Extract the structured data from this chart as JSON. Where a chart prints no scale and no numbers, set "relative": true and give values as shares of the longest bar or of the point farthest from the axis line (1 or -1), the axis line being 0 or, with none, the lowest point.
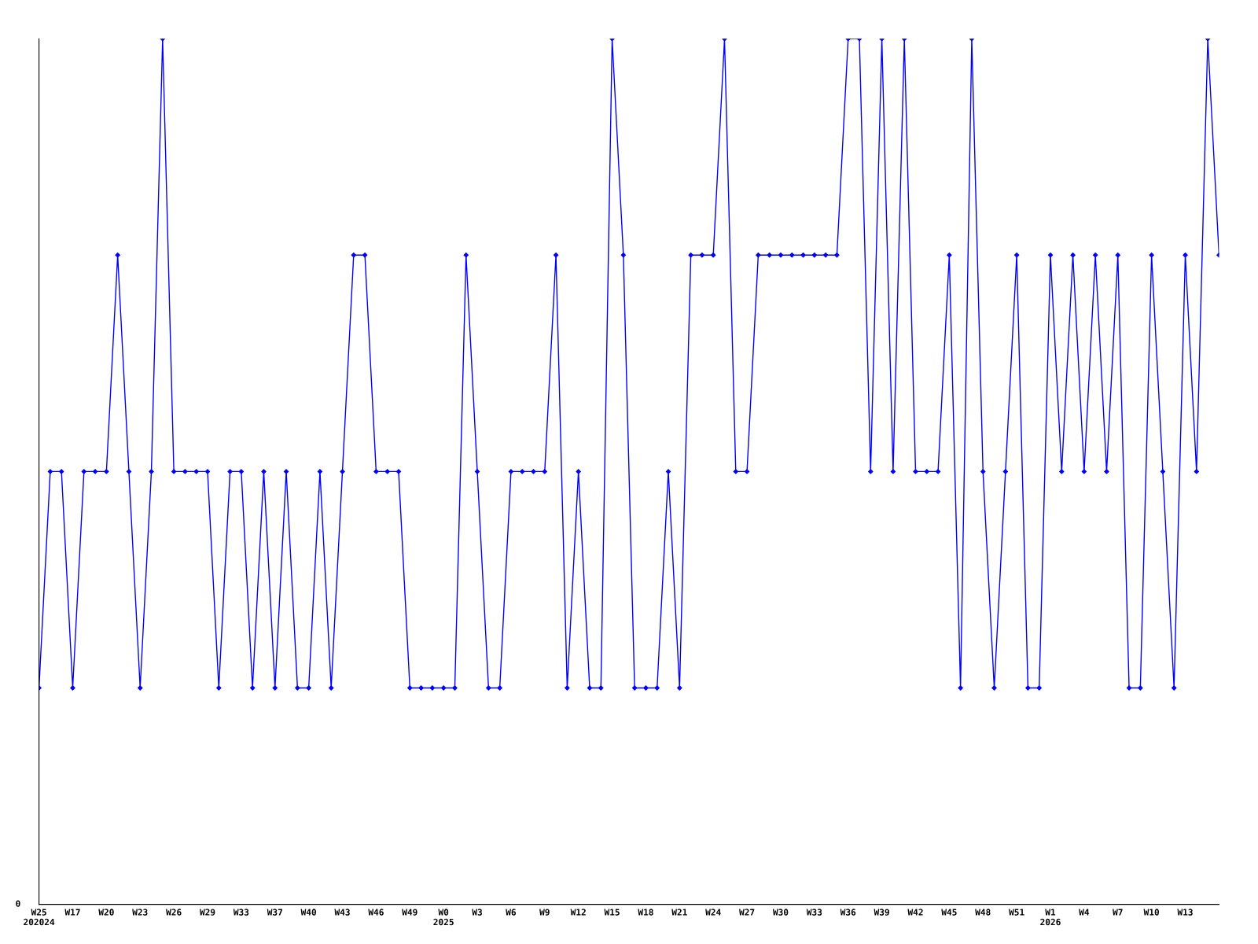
{
  "chart_data": {
    "type": "line",
    "relative": true,
    "marker": "diamond",
    "line_style": "solid",
    "categories": [
      "W25\n202024",
      null,
      null,
      "W17",
      null,
      null,
      "W20",
      null,
      null,
      "W23",
      null,
      null,
      "W26",
      null,
      null,
      "W29",
      null,
      null,
      "W33",
      null,
      null,
      "W37",
      null,
      null,
      "W40",
      null,
      null,
      "W43",
      null,
      null,
      "W46",
      null,
      null,
      "W49",
      null,
      null,
      "W0\n2025",
      null,
      null,
      "W3",
      null,
      null,
      "W6",
      null,
      null,
      "W9",
      null,
      null,
      "W12",
      null,
      null,
      "W15",
      null,
      null,
      "W18",
      null,
      null,
      "W21",
      null,
      null,
      "W24",
      null,
      null,
      "W27",
      null,
      null,
      "W30",
      null,
      null,
      "W33",
      null,
      null,
      "W36",
      null,
      null,
      "W39",
      null,
      null,
      "W42",
      null,
      null,
      "W45",
      null,
      null,
      "W48",
      null,
      null,
      "W51",
      null,
      null,
      "W1\n2026",
      null,
      null,
      "W4",
      null,
      null,
      "W7",
      null,
      null,
      "W10",
      null,
      null,
      "W13",
      null,
      null,
      null
    ],
    "series": [
      {
        "color": "#0000ff",
        "values": [
          0.25,
          0.5,
          0.5,
          0.25,
          0.5,
          0.5,
          0.5,
          0.75,
          0.5,
          0.25,
          0.5,
          1,
          0.5,
          0.5,
          0.5,
          0.5,
          0.25,
          0.5,
          0.5,
          0.25,
          0.5,
          0.25,
          0.5,
          0.25,
          0.25,
          0.5,
          0.25,
          0.5,
          0.75,
          0.75,
          0.5,
          0.5,
          0.5,
          0.25,
          0.25,
          0.25,
          0.25,
          0.25,
          0.75,
          0.5,
          0.25,
          0.25,
          0.5,
          0.5,
          0.5,
          0.5,
          0.75,
          0.25,
          0.5,
          0.25,
          0.25,
          1,
          0.75,
          0.25,
          0.25,
          0.25,
          0.5,
          0.25,
          0.75,
          0.75,
          0.75,
          1,
          0.5,
          0.5,
          0.75,
          0.75,
          0.75,
          0.75,
          0.75,
          0.75,
          0.75,
          0.75,
          1,
          1,
          0.5,
          1,
          0.5,
          1,
          0.5,
          0.5,
          0.5,
          0.75,
          0.25,
          1,
          0.5,
          0.25,
          0.5,
          0.75,
          0.25,
          0.25,
          0.75,
          0.5,
          0.75,
          0.5,
          0.75,
          0.5,
          0.75,
          0.25,
          0.25,
          0.75,
          0.5,
          0.25,
          0.75,
          0.5,
          1,
          0.75
        ]
      }
    ],
    "annotations": [
      "0"
    ]
  }
}
